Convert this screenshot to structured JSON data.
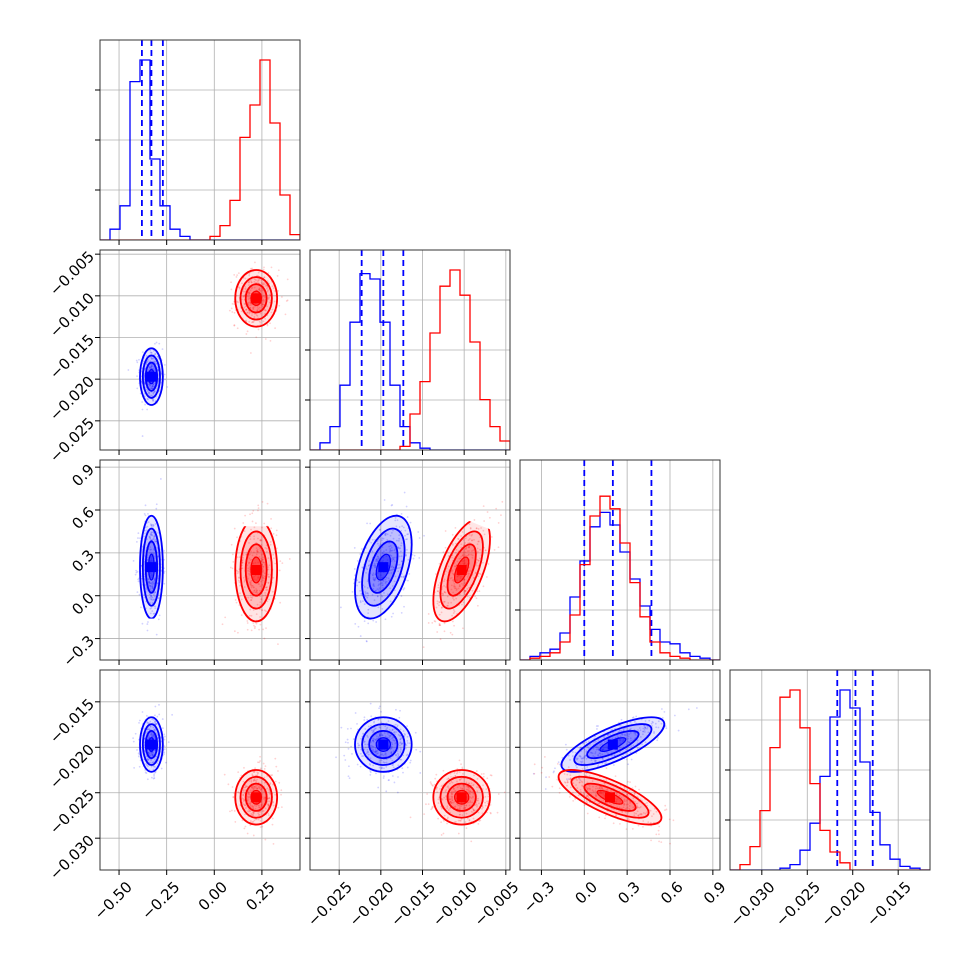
{
  "chart_data": {
    "type": "corner",
    "colors": {
      "blue": "#0000ff",
      "red": "#ff0000"
    },
    "grid": true,
    "parameters": [
      {
        "range": [
          -0.6,
          0.45
        ],
        "ticks": [
          -0.5,
          -0.25,
          0.0,
          0.25
        ],
        "tick_labels": [
          "−0.50",
          "−0.25",
          "0.00",
          "0.25"
        ]
      },
      {
        "range": [
          -0.0285,
          -0.0045
        ],
        "ticks": [
          -0.025,
          -0.02,
          -0.015,
          -0.01,
          -0.005
        ],
        "tick_labels": [
          "−0.025",
          "−0.020",
          "−0.015",
          "−0.010",
          "−0.005"
        ]
      },
      {
        "range": [
          -0.45,
          0.95
        ],
        "ticks": [
          -0.3,
          0.0,
          0.3,
          0.6,
          0.9
        ],
        "tick_labels": [
          "−0.3",
          "0.0",
          "0.3",
          "0.6",
          "0.9"
        ]
      },
      {
        "range": [
          -0.0335,
          -0.0115
        ],
        "ticks": [
          -0.03,
          -0.025,
          -0.02,
          -0.015
        ],
        "tick_labels": [
          "−0.030",
          "−0.025",
          "−0.020",
          "−0.015"
        ]
      }
    ],
    "series": [
      {
        "name": "blue",
        "color": "#0000ff",
        "mean": [
          -0.33,
          -0.0197,
          0.2,
          -0.0197
        ],
        "std": [
          0.03,
          0.0017,
          0.18,
          0.0015
        ],
        "corr": [
          [
            1,
            0,
            0,
            0
          ],
          [
            0,
            1,
            0.45,
            0
          ],
          [
            0,
            0.45,
            1,
            0.75
          ],
          [
            0,
            0,
            0.75,
            1
          ]
        ],
        "quantiles": [
          [
            -0.38,
            -0.33,
            -0.27
          ],
          [
            -0.0223,
            -0.0197,
            -0.0173
          ],
          [
            0.0,
            0.2,
            0.47
          ],
          [
            -0.0217,
            -0.0197,
            -0.0178
          ]
        ],
        "hist": [
          [
            0,
            6,
            19,
            88,
            100,
            45,
            19,
            6,
            2,
            0,
            0,
            0,
            0,
            0,
            0,
            0,
            0,
            0,
            0,
            0
          ],
          [
            0,
            4,
            13,
            36,
            71,
            98,
            95,
            71,
            36,
            13,
            4,
            1,
            0,
            0,
            0,
            0,
            0,
            0,
            0,
            0
          ],
          [
            0,
            2,
            4,
            6,
            15,
            35,
            55,
            74,
            82,
            75,
            60,
            45,
            30,
            17,
            10,
            9,
            4,
            2,
            1,
            0
          ],
          [
            0,
            0,
            0,
            0,
            0,
            1,
            3,
            11,
            26,
            52,
            85,
            100,
            90,
            60,
            32,
            14,
            6,
            2,
            1,
            0
          ]
        ]
      },
      {
        "name": "red",
        "color": "#ff0000",
        "mean": [
          0.22,
          -0.0103,
          0.18,
          -0.0255
        ],
        "std": [
          0.055,
          0.0017,
          0.18,
          0.0015
        ],
        "corr": [
          [
            1,
            0,
            0,
            0
          ],
          [
            0,
            1,
            0.6,
            0
          ],
          [
            0,
            0.6,
            1,
            -0.75
          ],
          [
            0,
            0,
            -0.75,
            1
          ]
        ],
        "quantiles": [],
        "hist": [
          [
            0,
            0,
            0,
            0,
            0,
            0,
            0,
            0,
            0,
            0,
            0,
            2,
            8,
            22,
            57,
            75,
            100,
            65,
            25,
            3
          ],
          [
            0,
            0,
            0,
            0,
            0,
            0,
            0,
            0,
            0,
            2,
            20,
            38,
            65,
            91,
            100,
            86,
            60,
            28,
            13,
            5
          ],
          [
            0,
            1,
            2,
            4,
            10,
            25,
            53,
            80,
            91,
            84,
            65,
            43,
            24,
            10,
            4,
            2,
            1,
            0,
            0,
            0
          ],
          [
            0,
            3,
            13,
            33,
            68,
            96,
            100,
            79,
            48,
            22,
            10,
            4,
            0,
            0,
            0,
            0,
            0,
            0,
            0,
            0
          ]
        ]
      }
    ]
  }
}
